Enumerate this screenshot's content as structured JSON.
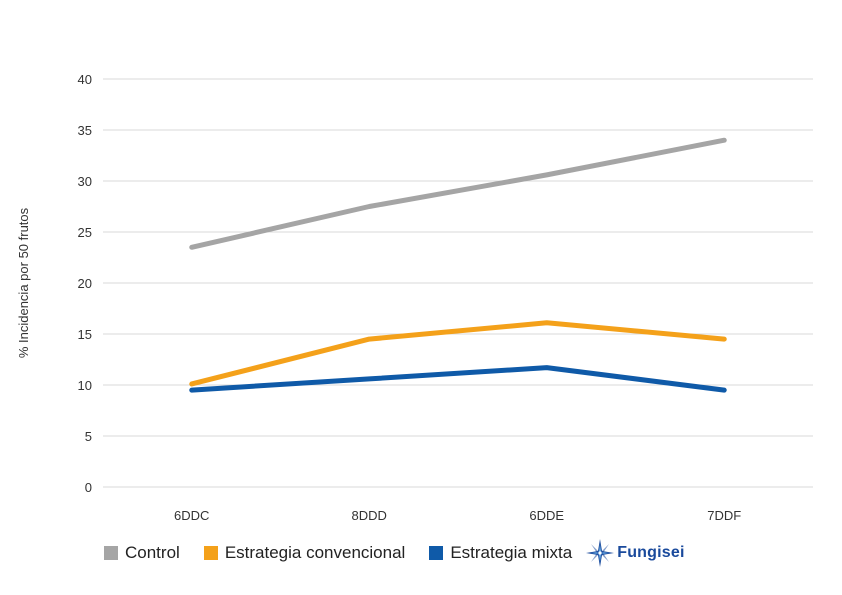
{
  "chart_data": {
    "type": "line",
    "title": "",
    "xlabel": "",
    "ylabel": "% Incidencia por 50 frutos",
    "categories": [
      "6DDC",
      "8DDD",
      "6DDE",
      "7DDF"
    ],
    "ylim": [
      0,
      40
    ],
    "yticks": [
      0,
      5,
      10,
      15,
      20,
      25,
      30,
      35,
      40
    ],
    "grid": true,
    "legend_position": "bottom",
    "series": [
      {
        "name": "Control",
        "color": "#a5a5a5",
        "values": [
          23.5,
          27.5,
          30.6,
          34.0
        ]
      },
      {
        "name": "Estrategia convencional",
        "color": "#f4a11a",
        "values": [
          10.1,
          14.5,
          16.1,
          14.5
        ]
      },
      {
        "name": "Estrategia mixta",
        "color": "#0f5aa8",
        "values": [
          9.5,
          10.6,
          11.7,
          9.5
        ]
      }
    ]
  },
  "logo": {
    "text": "Fungisei",
    "icon": "compass-star-icon",
    "color": "#1a4a9c"
  }
}
